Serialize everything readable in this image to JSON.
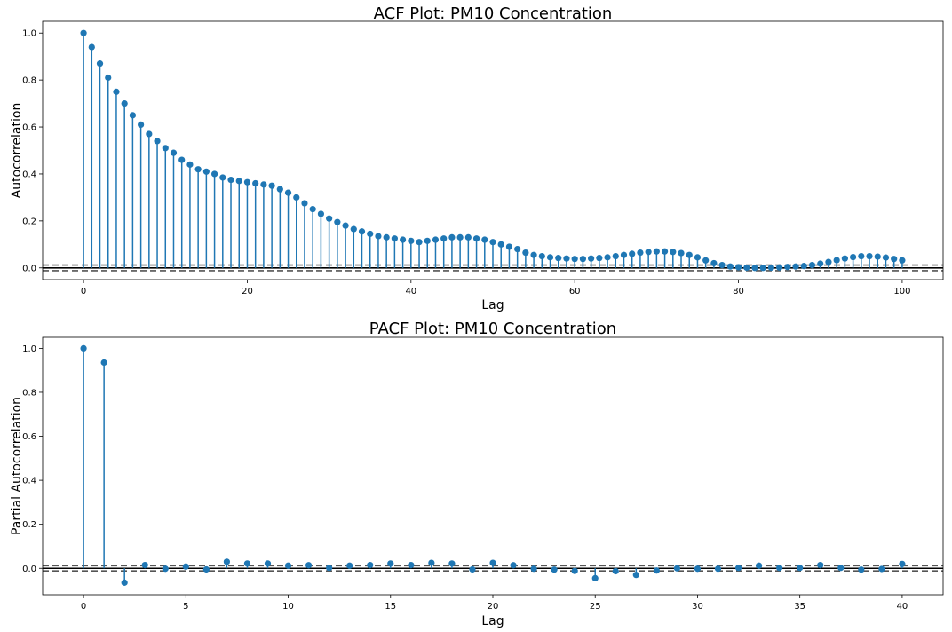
{
  "chart_data": [
    {
      "type": "stem",
      "title": "ACF Plot: PM10 Concentration",
      "xlabel": "Lag",
      "ylabel": "Autocorrelation",
      "xlim": [
        -5,
        105
      ],
      "ylim": [
        -0.05,
        1.05
      ],
      "xticks": [
        0,
        20,
        40,
        60,
        80,
        100
      ],
      "yticks": [
        0.0,
        0.2,
        0.4,
        0.6,
        0.8,
        1.0
      ],
      "ytick_labels": [
        "0.0",
        "0.2",
        "0.4",
        "0.6",
        "0.8",
        "1.0"
      ],
      "confidence_band": [
        -0.012,
        0.012
      ],
      "marker_color": "#1f77b4",
      "x": [
        0,
        1,
        2,
        3,
        4,
        5,
        6,
        7,
        8,
        9,
        10,
        11,
        12,
        13,
        14,
        15,
        16,
        17,
        18,
        19,
        20,
        21,
        22,
        23,
        24,
        25,
        26,
        27,
        28,
        29,
        30,
        31,
        32,
        33,
        34,
        35,
        36,
        37,
        38,
        39,
        40,
        41,
        42,
        43,
        44,
        45,
        46,
        47,
        48,
        49,
        50,
        51,
        52,
        53,
        54,
        55,
        56,
        57,
        58,
        59,
        60,
        61,
        62,
        63,
        64,
        65,
        66,
        67,
        68,
        69,
        70,
        71,
        72,
        73,
        74,
        75,
        76,
        77,
        78,
        79,
        80,
        81,
        82,
        83,
        84,
        85,
        86,
        87,
        88,
        89,
        90,
        91,
        92,
        93,
        94,
        95,
        96,
        97,
        98,
        99,
        100
      ],
      "values": [
        1.0,
        0.94,
        0.87,
        0.81,
        0.75,
        0.7,
        0.65,
        0.61,
        0.57,
        0.54,
        0.51,
        0.49,
        0.46,
        0.44,
        0.42,
        0.41,
        0.4,
        0.385,
        0.375,
        0.37,
        0.365,
        0.36,
        0.355,
        0.35,
        0.335,
        0.32,
        0.3,
        0.275,
        0.25,
        0.23,
        0.21,
        0.195,
        0.18,
        0.165,
        0.155,
        0.145,
        0.135,
        0.13,
        0.125,
        0.12,
        0.115,
        0.11,
        0.115,
        0.12,
        0.125,
        0.13,
        0.13,
        0.13,
        0.125,
        0.12,
        0.11,
        0.1,
        0.09,
        0.08,
        0.065,
        0.055,
        0.05,
        0.045,
        0.042,
        0.04,
        0.038,
        0.038,
        0.04,
        0.042,
        0.045,
        0.05,
        0.055,
        0.06,
        0.065,
        0.068,
        0.07,
        0.07,
        0.068,
        0.063,
        0.055,
        0.045,
        0.032,
        0.02,
        0.012,
        0.006,
        0.003,
        0.001,
        0.0,
        0.0,
        0.001,
        0.002,
        0.004,
        0.006,
        0.008,
        0.012,
        0.018,
        0.025,
        0.033,
        0.04,
        0.046,
        0.05,
        0.05,
        0.048,
        0.044,
        0.038,
        0.032
      ]
    },
    {
      "type": "stem",
      "title": "PACF Plot: PM10 Concentration",
      "xlabel": "Lag",
      "ylabel": "Partial Autocorrelation",
      "xlim": [
        -2.0,
        42.0
      ],
      "ylim": [
        -0.12,
        1.05
      ],
      "xticks": [
        0,
        5,
        10,
        15,
        20,
        25,
        30,
        35,
        40
      ],
      "yticks": [
        0.0,
        0.2,
        0.4,
        0.6,
        0.8,
        1.0
      ],
      "ytick_labels": [
        "0.0",
        "0.2",
        "0.4",
        "0.6",
        "0.8",
        "1.0"
      ],
      "confidence_band": [
        -0.012,
        0.012
      ],
      "marker_color": "#1f77b4",
      "x": [
        0,
        1,
        2,
        3,
        4,
        5,
        6,
        7,
        8,
        9,
        10,
        11,
        12,
        13,
        14,
        15,
        16,
        17,
        18,
        19,
        20,
        21,
        22,
        23,
        24,
        25,
        26,
        27,
        28,
        29,
        30,
        31,
        32,
        33,
        34,
        35,
        36,
        37,
        38,
        39,
        40
      ],
      "values": [
        1.0,
        0.935,
        -0.065,
        0.015,
        -0.002,
        0.008,
        -0.005,
        0.03,
        0.022,
        0.022,
        0.012,
        0.014,
        0.002,
        0.012,
        0.015,
        0.022,
        0.015,
        0.025,
        0.022,
        -0.005,
        0.025,
        0.014,
        -0.002,
        -0.006,
        -0.012,
        -0.045,
        -0.013,
        -0.03,
        -0.01,
        0.0,
        -0.002,
        -0.002,
        0.002,
        0.012,
        0.002,
        0.002,
        0.015,
        0.002,
        -0.006,
        -0.003,
        0.02
      ]
    }
  ]
}
